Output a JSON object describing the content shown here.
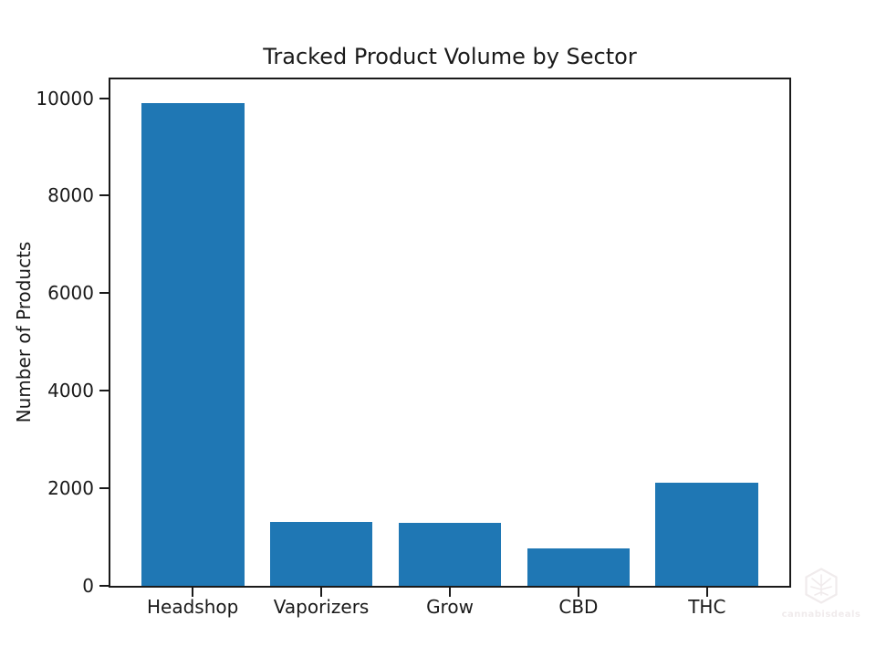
{
  "chart_data": {
    "type": "bar",
    "title": "Tracked Product Volume by Sector",
    "xlabel": "",
    "ylabel": "Number of Products",
    "categories": [
      "Headshop",
      "Vaporizers",
      "Grow",
      "CBD",
      "THC"
    ],
    "values": [
      9890,
      1310,
      1285,
      770,
      2120
    ],
    "yticks": [
      0,
      2000,
      4000,
      6000,
      8000,
      10000
    ],
    "ylim": [
      0,
      10385
    ],
    "bar_color": "#1f77b4",
    "axis_color": "#1a1a1a",
    "grid": false,
    "legend": false
  },
  "watermark": {
    "text": "cannabisdeals",
    "icon": "hexagon-cannabis-leaf",
    "color": "#f0ebec"
  }
}
